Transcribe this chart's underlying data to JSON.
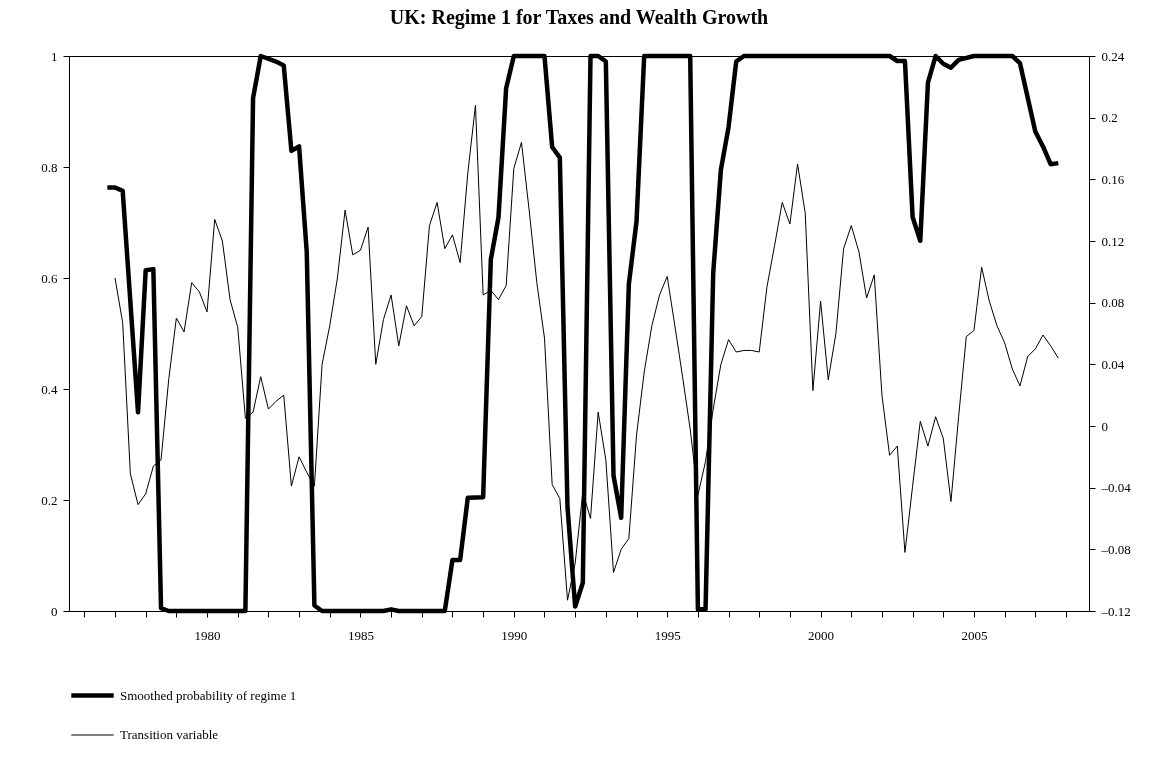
{
  "chart_data": {
    "type": "line",
    "title": "UK: Regime 1 for Taxes and Wealth Growth",
    "xlim": [
      1975.5,
      2008.75
    ],
    "xticks": [
      {
        "value": 1976,
        "label": null
      },
      {
        "value": 1977,
        "label": null
      },
      {
        "value": 1978,
        "label": null
      },
      {
        "value": 1979,
        "label": null
      },
      1980,
      {
        "value": 1981,
        "label": null
      },
      {
        "value": 1982,
        "label": null
      },
      {
        "value": 1983,
        "label": null
      },
      {
        "value": 1984,
        "label": null
      },
      1985,
      {
        "value": 1986,
        "label": null
      },
      {
        "value": 1987,
        "label": null
      },
      {
        "value": 1988,
        "label": null
      },
      {
        "value": 1989,
        "label": null
      },
      1990,
      {
        "value": 1991,
        "label": null
      },
      {
        "value": 1992,
        "label": null
      },
      {
        "value": 1993,
        "label": null
      },
      {
        "value": 1994,
        "label": null
      },
      1995,
      {
        "value": 1996,
        "label": null
      },
      {
        "value": 1997,
        "label": null
      },
      {
        "value": 1998,
        "label": null
      },
      {
        "value": 1999,
        "label": null
      },
      2000,
      {
        "value": 2001,
        "label": null
      },
      {
        "value": 2002,
        "label": null
      },
      {
        "value": 2003,
        "label": null
      },
      {
        "value": 2004,
        "label": null
      },
      2005,
      {
        "value": 2006,
        "label": null
      },
      {
        "value": 2007,
        "label": null
      },
      {
        "value": 2008,
        "label": null
      }
    ],
    "ylim": [
      0,
      1
    ],
    "yticks": [
      0,
      0.2,
      0.4,
      0.6,
      0.8,
      1
    ],
    "y2lim": [
      -0.12,
      0.24
    ],
    "y2ticks": [
      {
        "value": -0.12,
        "label": "–0.12"
      },
      {
        "value": -0.08,
        "label": "–0.08"
      },
      {
        "value": -0.04,
        "label": "–0.04"
      },
      0,
      0.04,
      0.08,
      0.12,
      0.16,
      0.2,
      0.24
    ],
    "legend": "bottom",
    "grid": false,
    "series": [
      {
        "name": "Smoothed probability of regime 1",
        "color": "#000000",
        "x": [
          1976.75,
          1977.0,
          1977.25,
          1977.75,
          1978.0,
          1978.25,
          1978.5,
          1978.75,
          1981.25,
          1981.5,
          1981.75,
          1982.25,
          1982.5,
          1982.75,
          1983.0,
          1983.25,
          1983.5,
          1983.75,
          1985.75,
          1986.0,
          1986.25,
          1987.75,
          1988.0,
          1988.25,
          1988.5,
          1989.0,
          1989.25,
          1989.5,
          1989.75,
          1990.0,
          1991.0,
          1991.25,
          1991.5,
          1991.75,
          1992.0,
          1992.25,
          1992.5,
          1992.75,
          1993.0,
          1993.25,
          1993.5,
          1993.75,
          1994.0,
          1994.25,
          1995.75,
          1996.0,
          1996.25,
          1996.5,
          1996.75,
          1997.0,
          1997.25,
          1997.5,
          2002.25,
          2002.5,
          2002.75,
          2003.0,
          2003.25,
          2003.5,
          2003.75,
          2004.0,
          2004.25,
          2004.5,
          2005.0,
          2006.25,
          2006.5,
          2007.0,
          2007.25,
          2007.5,
          2007.75
        ],
        "values": [
          0.763,
          0.763,
          0.757,
          0.358,
          0.614,
          0.616,
          0.005,
          0,
          0,
          0.924,
          1,
          0.99,
          0.983,
          0.829,
          0.837,
          0.647,
          0.01,
          0,
          0,
          0.003,
          0,
          0,
          0.092,
          0.092,
          0.204,
          0.205,
          0.633,
          0.709,
          0.942,
          1,
          1,
          0.836,
          0.817,
          0.187,
          0.008,
          0.051,
          1,
          1,
          0.99,
          0.244,
          0.168,
          0.589,
          0.702,
          1,
          1,
          0.003,
          0.003,
          0.609,
          0.795,
          0.872,
          0.99,
          1,
          1,
          0.991,
          0.991,
          0.71,
          0.667,
          0.952,
          1,
          0.986,
          0.979,
          0.993,
          1,
          1,
          0.987,
          0.864,
          0.837,
          0.805,
          0.807
        ]
      },
      {
        "name": "Transition variable",
        "color": "#000000",
        "axis": "y2",
        "x": [
          1977.0,
          1977.25,
          1977.5,
          1977.75,
          1978.0,
          1978.25,
          1978.5,
          1978.75,
          1979.0,
          1979.25,
          1979.5,
          1979.75,
          1980.0,
          1980.25,
          1980.5,
          1980.75,
          1981.0,
          1981.25,
          1981.5,
          1981.75,
          1982.0,
          1982.25,
          1982.5,
          1982.75,
          1983.0,
          1983.25,
          1983.5,
          1983.75,
          1984.0,
          1984.25,
          1984.5,
          1984.75,
          1985.0,
          1985.25,
          1985.5,
          1985.75,
          1986.0,
          1986.25,
          1986.5,
          1986.75,
          1987.0,
          1987.25,
          1987.5,
          1987.75,
          1988.0,
          1988.25,
          1988.5,
          1988.75,
          1989.0,
          1989.25,
          1989.5,
          1989.75,
          1990.0,
          1990.25,
          1990.5,
          1990.75,
          1991.0,
          1991.25,
          1991.5,
          1991.75,
          1992.0,
          1992.25,
          1992.5,
          1992.75,
          1993.0,
          1993.25,
          1993.5,
          1993.75,
          1994.0,
          1994.25,
          1994.5,
          1994.75,
          1995.0,
          1995.25,
          1995.5,
          1995.75,
          1996.0,
          1996.25,
          1996.5,
          1996.75,
          1997.0,
          1997.25,
          1997.5,
          1997.75,
          1998.0,
          1998.25,
          1998.5,
          1998.75,
          1999.0,
          1999.25,
          1999.5,
          1999.75,
          2000.0,
          2000.25,
          2000.5,
          2000.75,
          2001.0,
          2001.25,
          2001.5,
          2001.75,
          2002.0,
          2002.25,
          2002.5,
          2002.75,
          2003.0,
          2003.25,
          2003.5,
          2003.75,
          2004.0,
          2004.25,
          2004.5,
          2004.75,
          2005.0,
          2005.25,
          2005.5,
          2005.75,
          2006.0,
          2006.25,
          2006.5,
          2006.75,
          2007.0,
          2007.25,
          2007.5,
          2007.75
        ],
        "values": [
          0.096,
          0.067,
          -0.031,
          -0.051,
          -0.044,
          -0.026,
          -0.022,
          0.03,
          0.07,
          0.061,
          0.093,
          0.087,
          0.074,
          0.134,
          0.12,
          0.082,
          0.064,
          0.005,
          0.009,
          0.032,
          0.011,
          0.016,
          0.02,
          -0.039,
          -0.02,
          -0.03,
          -0.039,
          0.04,
          0.065,
          0.096,
          0.14,
          0.111,
          0.114,
          0.129,
          0.04,
          0.069,
          0.085,
          0.052,
          0.078,
          0.065,
          0.071,
          0.13,
          0.145,
          0.115,
          0.124,
          0.106,
          0.164,
          0.208,
          0.085,
          0.088,
          0.082,
          0.091,
          0.167,
          0.184,
          0.14,
          0.093,
          0.057,
          -0.038,
          -0.047,
          -0.113,
          -0.089,
          -0.043,
          -0.06,
          0.009,
          -0.022,
          -0.095,
          -0.08,
          -0.073,
          -0.006,
          0.035,
          0.065,
          0.085,
          0.097,
          0.065,
          0.032,
          -0.002,
          -0.045,
          -0.023,
          0.011,
          0.04,
          0.056,
          0.048,
          0.049,
          0.049,
          0.048,
          0.09,
          0.117,
          0.145,
          0.131,
          0.17,
          0.138,
          0.023,
          0.081,
          0.03,
          0.06,
          0.115,
          0.13,
          0.113,
          0.083,
          0.098,
          0.02,
          -0.019,
          -0.013,
          -0.082,
          -0.039,
          0.003,
          -0.013,
          0.006,
          -0.008,
          -0.049,
          0.006,
          0.058,
          0.062,
          0.103,
          0.081,
          0.065,
          0.054,
          0.037,
          0.026,
          0.045,
          0.05,
          0.059,
          0.052,
          0.044
        ]
      }
    ]
  }
}
